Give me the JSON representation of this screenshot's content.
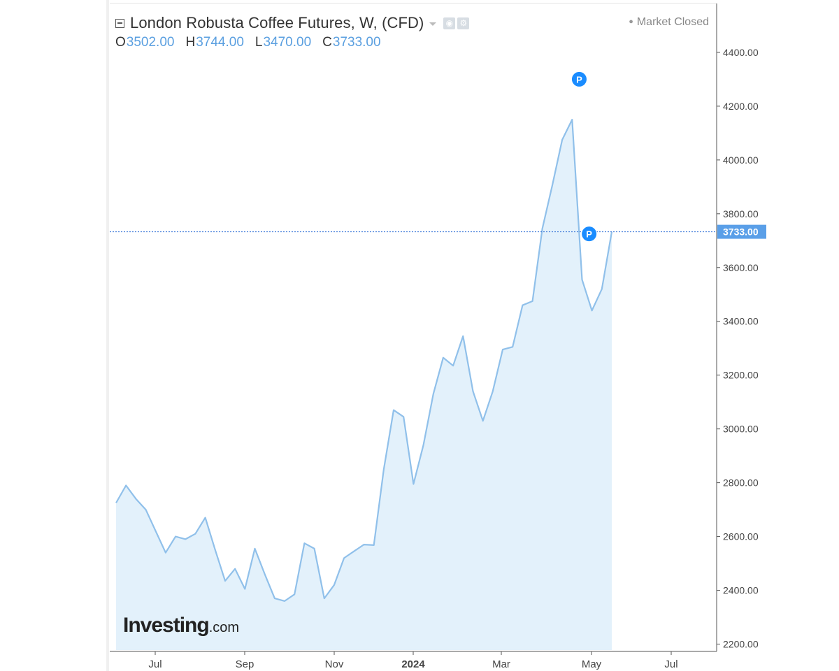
{
  "header": {
    "title": "London Robusta Coffee Futures, W, (CFD)",
    "ohlc": [
      {
        "label": "O",
        "value": "3502.00"
      },
      {
        "label": "H",
        "value": "3744.00"
      },
      {
        "label": "L",
        "value": "3470.00"
      },
      {
        "label": "C",
        "value": "3733.00"
      }
    ],
    "market_status": "Market Closed"
  },
  "logo": {
    "main": "Investing",
    "sub": ".com"
  },
  "colors": {
    "line": "#90c0ea",
    "area": "#e3f1fb",
    "price_line": "#2f6fd6",
    "price_label_bg": "#5a9fe8",
    "marker": "#1a8cff",
    "axis": "#555555"
  },
  "chart_data": {
    "type": "area",
    "title": "London Robusta Coffee Futures, W, (CFD)",
    "x_tick_labels": [
      "Jul",
      "Sep",
      "Nov",
      "2024",
      "Mar",
      "May",
      "Jul"
    ],
    "y_tick_labels": [
      "2200.00",
      "2400.00",
      "2600.00",
      "2800.00",
      "3000.00",
      "3200.00",
      "3400.00",
      "3600.00",
      "3800.00",
      "4000.00",
      "4200.00",
      "4400.00"
    ],
    "ylim": [
      2200,
      4400
    ],
    "last_price": 3733,
    "last_price_label": "3733.00",
    "values": [
      2725,
      2790,
      2740,
      2700,
      2620,
      2540,
      2600,
      2590,
      2610,
      2670,
      2550,
      2435,
      2480,
      2405,
      2555,
      2460,
      2370,
      2360,
      2385,
      2575,
      2555,
      2370,
      2420,
      2520,
      2545,
      2570,
      2568,
      2850,
      3070,
      3045,
      2795,
      2940,
      3130,
      3265,
      3235,
      3345,
      3140,
      3030,
      3140,
      3295,
      3305,
      3460,
      3475,
      3745,
      3905,
      4075,
      4150,
      3555,
      3440,
      3520,
      3733
    ],
    "markers": [
      {
        "label": "P",
        "index": 47,
        "price": 4300
      },
      {
        "label": "P",
        "index": 48,
        "price": 3725
      }
    ]
  }
}
